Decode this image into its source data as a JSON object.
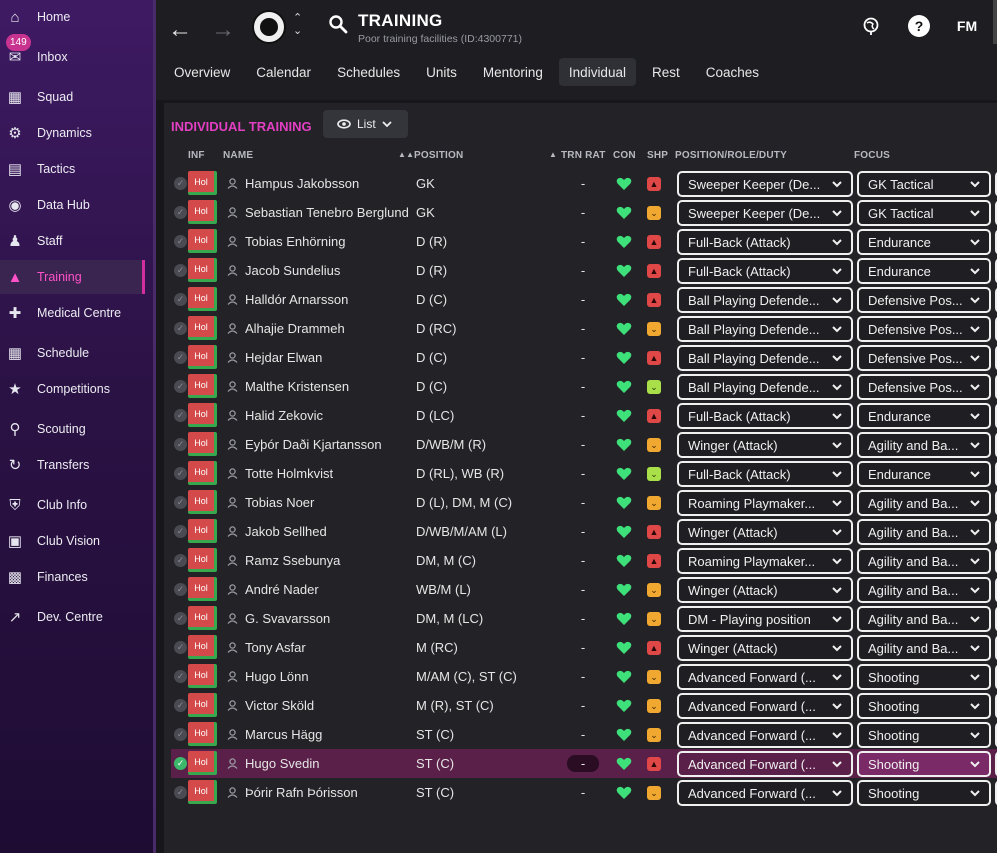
{
  "sidebar": {
    "items": [
      {
        "label": "Home",
        "icon": "home-icon"
      },
      {
        "label": "Inbox",
        "icon": "inbox-icon",
        "badge": "149"
      },
      {
        "label": "Squad",
        "icon": "squad-icon"
      },
      {
        "label": "Dynamics",
        "icon": "dynamics-icon"
      },
      {
        "label": "Tactics",
        "icon": "tactics-icon"
      },
      {
        "label": "Data Hub",
        "icon": "data-hub-icon"
      },
      {
        "label": "Staff",
        "icon": "staff-icon"
      },
      {
        "label": "Training",
        "icon": "training-icon",
        "active": true
      },
      {
        "label": "Medical Centre",
        "icon": "medical-icon"
      },
      {
        "label": "Schedule",
        "icon": "calendar-icon"
      },
      {
        "label": "Competitions",
        "icon": "trophy-icon"
      },
      {
        "label": "Scouting",
        "icon": "search-icon"
      },
      {
        "label": "Transfers",
        "icon": "transfers-icon"
      },
      {
        "label": "Club Info",
        "icon": "shield-icon"
      },
      {
        "label": "Club Vision",
        "icon": "briefcase-icon"
      },
      {
        "label": "Finances",
        "icon": "money-icon"
      },
      {
        "label": "Dev. Centre",
        "icon": "dev-centre-icon"
      }
    ]
  },
  "header": {
    "title": "TRAINING",
    "subtitle": "Poor training facilities (ID:4300771)",
    "brand": "FM"
  },
  "tabs": [
    "Overview",
    "Calendar",
    "Schedules",
    "Units",
    "Mentoring",
    "Individual",
    "Rest",
    "Coaches"
  ],
  "active_tab": "Individual",
  "panel": {
    "title": "INDIVIDUAL TRAINING",
    "view_button": "List"
  },
  "columns": {
    "inf": "INF",
    "name": "NAME",
    "position": "POSITION",
    "trn_rat": "TRN RAT",
    "con": "CON",
    "shp": "SHP",
    "role": "POSITION/ROLE/DUTY",
    "focus": "FOCUS"
  },
  "status_label": "Hol",
  "colors": {
    "accent": "#e23fc2",
    "con_heart": "#3ee07a",
    "shp_red": "#e04848",
    "shp_orange": "#f0a830",
    "shp_lime": "#a9e04a"
  },
  "players": [
    {
      "name": "Hampus Jakobsson",
      "position": "GK",
      "trn": "-",
      "shp": "red",
      "role": "Sweeper Keeper (De...",
      "focus": "GK Tactical"
    },
    {
      "name": "Sebastian Tenebro Berglund",
      "position": "GK",
      "trn": "-",
      "shp": "orange",
      "role": "Sweeper Keeper (De...",
      "focus": "GK Tactical"
    },
    {
      "name": "Tobias Enhörning",
      "position": "D (R)",
      "trn": "-",
      "shp": "red",
      "role": "Full-Back (Attack)",
      "focus": "Endurance"
    },
    {
      "name": "Jacob Sundelius",
      "position": "D (R)",
      "trn": "-",
      "shp": "red",
      "role": "Full-Back (Attack)",
      "focus": "Endurance"
    },
    {
      "name": "Halldór Arnarsson",
      "position": "D (C)",
      "trn": "-",
      "shp": "red",
      "role": "Ball Playing Defende...",
      "focus": "Defensive Pos..."
    },
    {
      "name": "Alhajie Drammeh",
      "position": "D (RC)",
      "trn": "-",
      "shp": "orange",
      "role": "Ball Playing Defende...",
      "focus": "Defensive Pos..."
    },
    {
      "name": "Hejdar Elwan",
      "position": "D (C)",
      "trn": "-",
      "shp": "red",
      "role": "Ball Playing Defende...",
      "focus": "Defensive Pos..."
    },
    {
      "name": "Malthe Kristensen",
      "position": "D (C)",
      "trn": "-",
      "shp": "lime",
      "role": "Ball Playing Defende...",
      "focus": "Defensive Pos..."
    },
    {
      "name": "Halid Zekovic",
      "position": "D (LC)",
      "trn": "-",
      "shp": "red",
      "role": "Full-Back (Attack)",
      "focus": "Endurance"
    },
    {
      "name": "Eyþór Daði Kjartansson",
      "position": "D/WB/M (R)",
      "trn": "-",
      "shp": "orange",
      "role": "Winger (Attack)",
      "focus": "Agility and Ba..."
    },
    {
      "name": "Totte Holmkvist",
      "position": "D (RL), WB (R)",
      "trn": "-",
      "shp": "lime",
      "role": "Full-Back (Attack)",
      "focus": "Endurance"
    },
    {
      "name": "Tobias Noer",
      "position": "D (L), DM, M (C)",
      "trn": "-",
      "shp": "orange",
      "role": "Roaming Playmaker...",
      "focus": "Agility and Ba..."
    },
    {
      "name": "Jakob Sellhed",
      "position": "D/WB/M/AM (L)",
      "trn": "-",
      "shp": "red",
      "role": "Winger (Attack)",
      "focus": "Agility and Ba..."
    },
    {
      "name": "Ramz Ssebunya",
      "position": "DM, M (C)",
      "trn": "-",
      "shp": "red",
      "role": "Roaming Playmaker...",
      "focus": "Agility and Ba..."
    },
    {
      "name": "André Nader",
      "position": "WB/M (L)",
      "trn": "-",
      "shp": "orange",
      "role": "Winger (Attack)",
      "focus": "Agility and Ba..."
    },
    {
      "name": "G. Svavarsson",
      "position": "DM, M (LC)",
      "trn": "-",
      "shp": "orange",
      "role": "DM - Playing position",
      "focus": "Agility and Ba..."
    },
    {
      "name": "Tony Asfar",
      "position": "M (RC)",
      "trn": "-",
      "shp": "red",
      "role": "Winger (Attack)",
      "focus": "Agility and Ba..."
    },
    {
      "name": "Hugo Lönn",
      "position": "M/AM (C), ST (C)",
      "trn": "-",
      "shp": "orange",
      "role": "Advanced Forward (...",
      "focus": "Shooting"
    },
    {
      "name": "Victor Sköld",
      "position": "M (R), ST (C)",
      "trn": "-",
      "shp": "orange",
      "role": "Advanced Forward (...",
      "focus": "Shooting"
    },
    {
      "name": "Marcus Hägg",
      "position": "ST (C)",
      "trn": "-",
      "shp": "orange",
      "role": "Advanced Forward (...",
      "focus": "Shooting"
    },
    {
      "name": "Hugo Svedin",
      "position": "ST (C)",
      "trn": "-",
      "shp": "red",
      "role": "Advanced Forward (...",
      "focus": "Shooting",
      "selected": true
    },
    {
      "name": "Þórir Rafn Þórisson",
      "position": "ST (C)",
      "trn": "-",
      "shp": "orange",
      "role": "Advanced Forward (...",
      "focus": "Shooting"
    }
  ]
}
